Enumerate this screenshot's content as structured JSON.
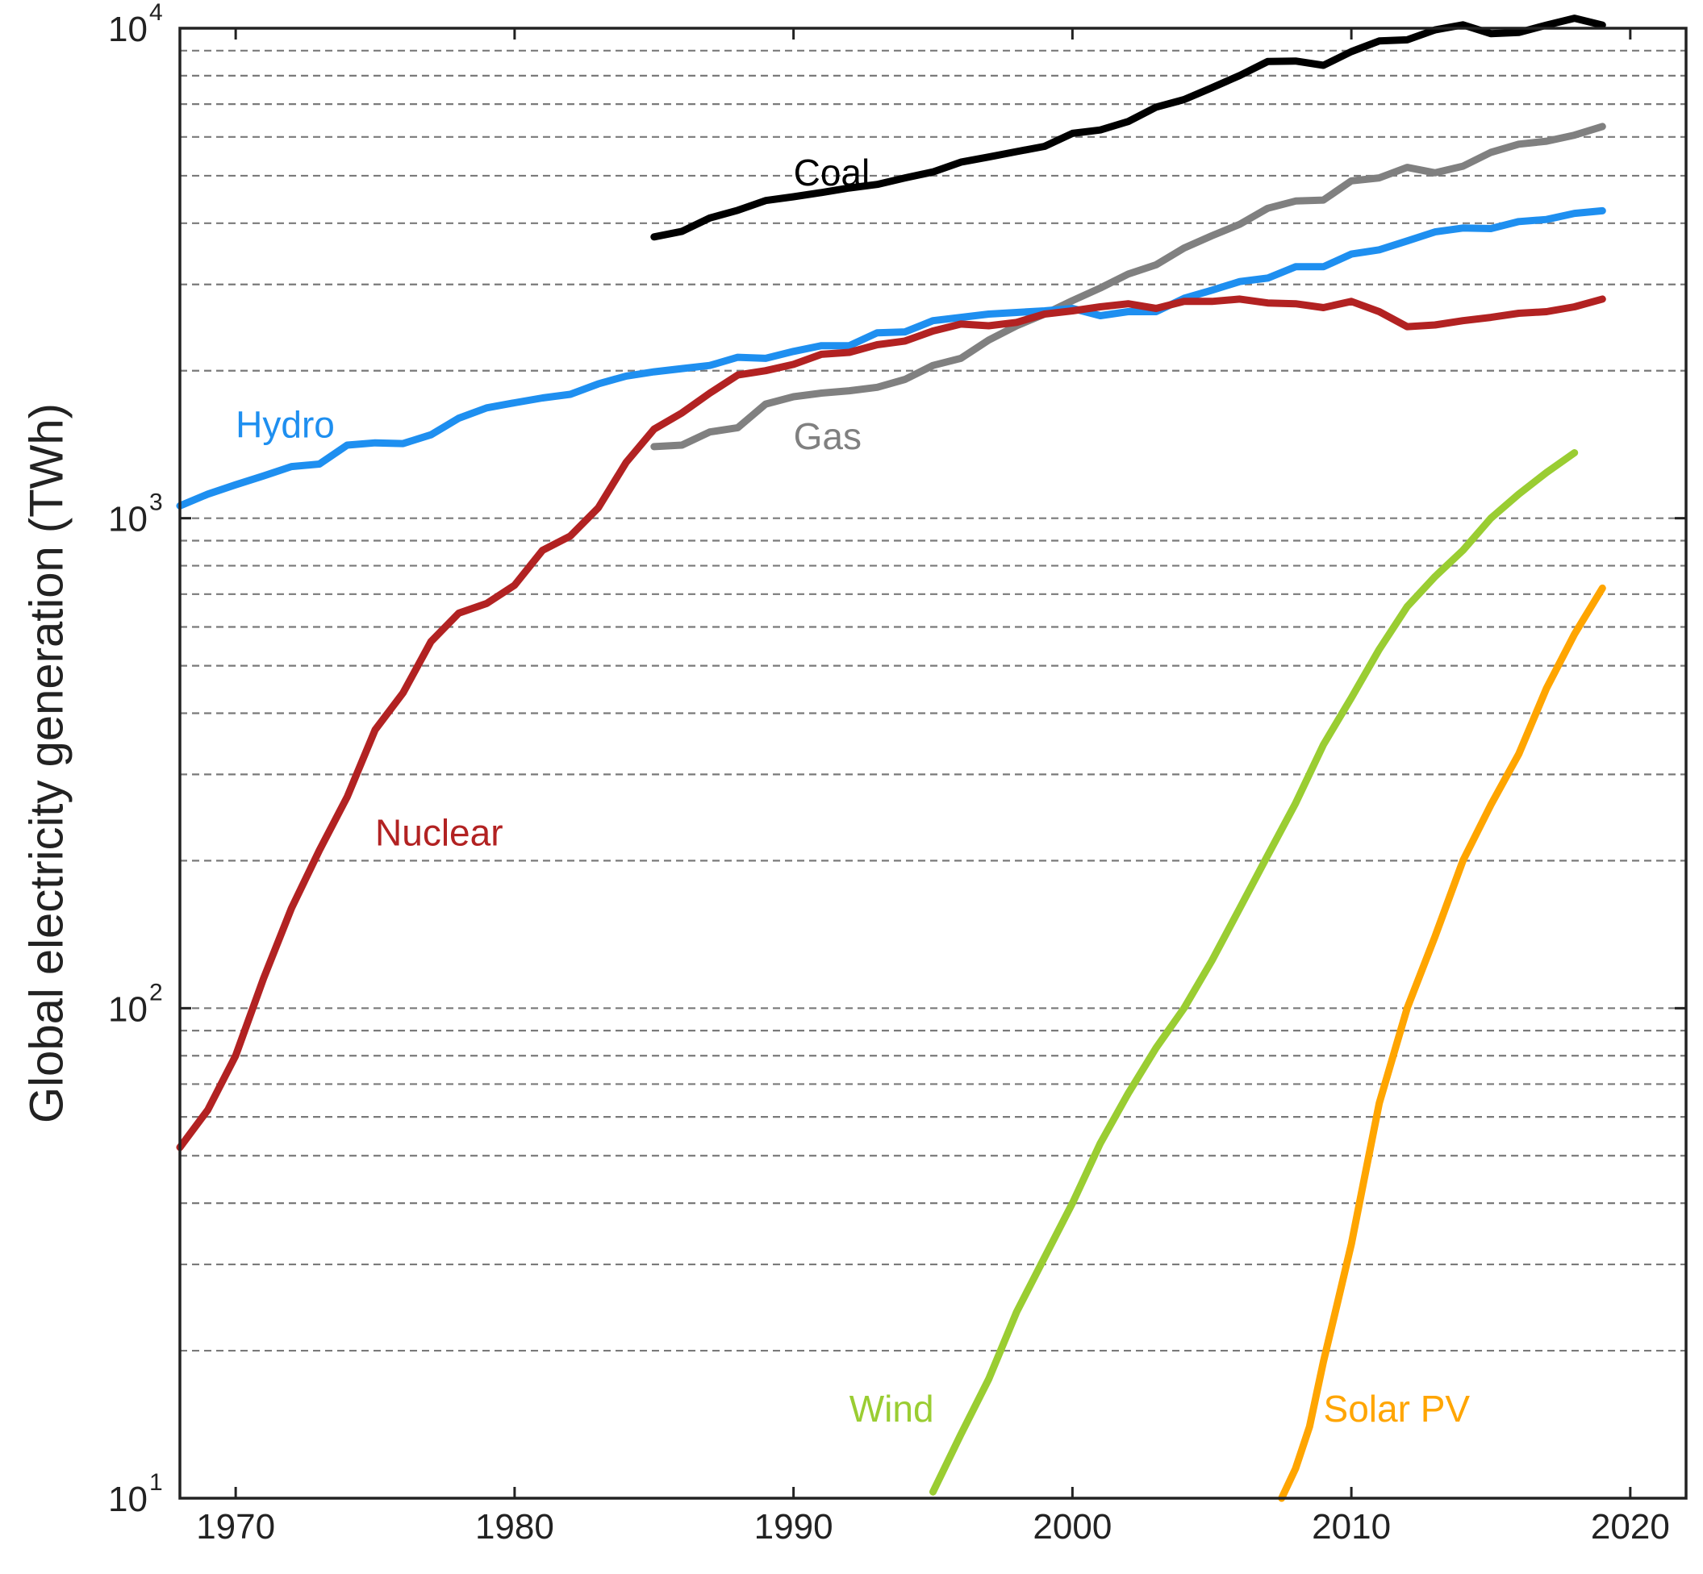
{
  "chart_data": {
    "type": "line",
    "title": "",
    "xlabel": "",
    "ylabel": "Global electricity generation (TWh)",
    "yscale": "log",
    "xlim": [
      1968,
      2022
    ],
    "ylim": [
      10,
      10000
    ],
    "grid": "horizontal dashed at every 1-9 multiple of each decade",
    "x_ticks": [
      1970,
      1980,
      1990,
      2000,
      2010,
      2020
    ],
    "x_tick_labels": [
      "1970",
      "1980",
      "1990",
      "2000",
      "2010",
      "2020"
    ],
    "y_ticks": [
      {
        "value": 10,
        "base": "10",
        "exp": "1"
      },
      {
        "value": 100,
        "base": "10",
        "exp": "2"
      },
      {
        "value": 1000,
        "base": "10",
        "exp": "3"
      },
      {
        "value": 10000,
        "base": "10",
        "exp": "4"
      }
    ],
    "series": [
      {
        "name": "Coal",
        "color": "#000000",
        "label_at": {
          "x": 1990,
          "y": 5000
        },
        "x": [
          1985,
          1986,
          1987,
          1988,
          1989,
          1990,
          1991,
          1992,
          1993,
          1994,
          1995,
          1996,
          1997,
          1998,
          1999,
          2000,
          2001,
          2002,
          2003,
          2004,
          2005,
          2006,
          2007,
          2008,
          2009,
          2010,
          2011,
          2012,
          2013,
          2014,
          2015,
          2016,
          2017,
          2018,
          2019
        ],
        "y": [
          3750,
          3850,
          4100,
          4250,
          4450,
          4530,
          4620,
          4720,
          4800,
          4950,
          5090,
          5330,
          5460,
          5600,
          5740,
          6100,
          6200,
          6450,
          6900,
          7150,
          7560,
          8010,
          8550,
          8570,
          8400,
          8960,
          9420,
          9470,
          9920,
          10160,
          9750,
          9800,
          10150,
          10480,
          10150
        ]
      },
      {
        "name": "Gas",
        "color": "#808080",
        "label_at": {
          "x": 1990,
          "y": 1450
        },
        "x": [
          1985,
          1986,
          1987,
          1988,
          1989,
          1990,
          1991,
          1992,
          1993,
          1994,
          1995,
          1996,
          1997,
          1998,
          1999,
          2000,
          2001,
          2002,
          2003,
          2004,
          2005,
          2006,
          2007,
          2008,
          2009,
          2010,
          2011,
          2012,
          2013,
          2014,
          2015,
          2016,
          2017,
          2018,
          2019
        ],
        "y": [
          1400,
          1410,
          1500,
          1530,
          1710,
          1770,
          1800,
          1820,
          1850,
          1920,
          2050,
          2120,
          2310,
          2470,
          2610,
          2780,
          2950,
          3150,
          3290,
          3560,
          3770,
          3980,
          4290,
          4440,
          4460,
          4880,
          4950,
          5200,
          5070,
          5230,
          5580,
          5800,
          5880,
          6050,
          6300
        ]
      },
      {
        "name": "Hydro",
        "color": "#1e8ff0",
        "label_at": {
          "x": 1970,
          "y": 1530
        },
        "x": [
          1968,
          1969,
          1970,
          1971,
          1972,
          1973,
          1974,
          1975,
          1976,
          1977,
          1978,
          1979,
          1980,
          1981,
          1982,
          1983,
          1984,
          1985,
          1986,
          1987,
          1988,
          1989,
          1990,
          1991,
          1992,
          1993,
          1994,
          1995,
          1996,
          1997,
          1998,
          1999,
          2000,
          2001,
          2002,
          2003,
          2004,
          2005,
          2006,
          2007,
          2008,
          2009,
          2010,
          2011,
          2012,
          2013,
          2014,
          2015,
          2016,
          2017,
          2018,
          2019
        ],
        "y": [
          1060,
          1120,
          1170,
          1220,
          1275,
          1290,
          1410,
          1425,
          1420,
          1480,
          1600,
          1680,
          1720,
          1760,
          1790,
          1880,
          1950,
          1990,
          2020,
          2050,
          2130,
          2120,
          2190,
          2250,
          2250,
          2390,
          2400,
          2530,
          2570,
          2610,
          2630,
          2650,
          2680,
          2590,
          2640,
          2640,
          2810,
          2920,
          3040,
          3090,
          3260,
          3260,
          3460,
          3530,
          3680,
          3840,
          3910,
          3900,
          4030,
          4070,
          4190,
          4240
        ]
      },
      {
        "name": "Nuclear",
        "color": "#b22222",
        "label_at": {
          "x": 1975,
          "y": 225
        },
        "x": [
          1968,
          1969,
          1970,
          1971,
          1972,
          1973,
          1974,
          1975,
          1976,
          1977,
          1978,
          1979,
          1980,
          1981,
          1982,
          1983,
          1984,
          1985,
          1986,
          1987,
          1988,
          1989,
          1990,
          1991,
          1992,
          1993,
          1994,
          1995,
          1996,
          1997,
          1998,
          1999,
          2000,
          2001,
          2002,
          2003,
          2004,
          2005,
          2006,
          2007,
          2008,
          2009,
          2010,
          2011,
          2012,
          2013,
          2014,
          2015,
          2016,
          2017,
          2018,
          2019
        ],
        "y": [
          52,
          62,
          80,
          115,
          160,
          210,
          270,
          370,
          440,
          560,
          640,
          670,
          730,
          860,
          920,
          1050,
          1300,
          1520,
          1640,
          1800,
          1960,
          2000,
          2060,
          2160,
          2180,
          2260,
          2300,
          2410,
          2490,
          2470,
          2510,
          2610,
          2650,
          2700,
          2740,
          2680,
          2770,
          2770,
          2800,
          2750,
          2740,
          2690,
          2770,
          2640,
          2460,
          2480,
          2530,
          2570,
          2620,
          2640,
          2700,
          2800
        ]
      },
      {
        "name": "Wind",
        "color": "#9acd32",
        "label_at": {
          "x": 1992,
          "y": 15
        },
        "x": [
          1995,
          1996,
          1997,
          1998,
          1999,
          2000,
          2001,
          2002,
          2003,
          2004,
          2005,
          2006,
          2007,
          2008,
          2009,
          2010,
          2011,
          2012,
          2013,
          2014,
          2015,
          2016,
          2017,
          2018
        ],
        "y": [
          10.3,
          13.5,
          17.5,
          24,
          31,
          40,
          53,
          67,
          83,
          100,
          125,
          160,
          205,
          262,
          345,
          430,
          540,
          660,
          760,
          860,
          1000,
          1120,
          1240,
          1360
        ]
      },
      {
        "name": "Solar PV",
        "color": "#ffa500",
        "label_at": {
          "x": 2009,
          "y": 15
        },
        "x": [
          2007.5,
          2008,
          2008.5,
          2009,
          2009.5,
          2010,
          2010.5,
          2011,
          2012,
          2013,
          2014,
          2015,
          2016,
          2017,
          2018,
          2019
        ],
        "y": [
          10,
          11.5,
          14,
          19,
          25,
          33,
          46,
          64,
          100,
          140,
          200,
          260,
          330,
          450,
          580,
          720
        ]
      }
    ]
  }
}
